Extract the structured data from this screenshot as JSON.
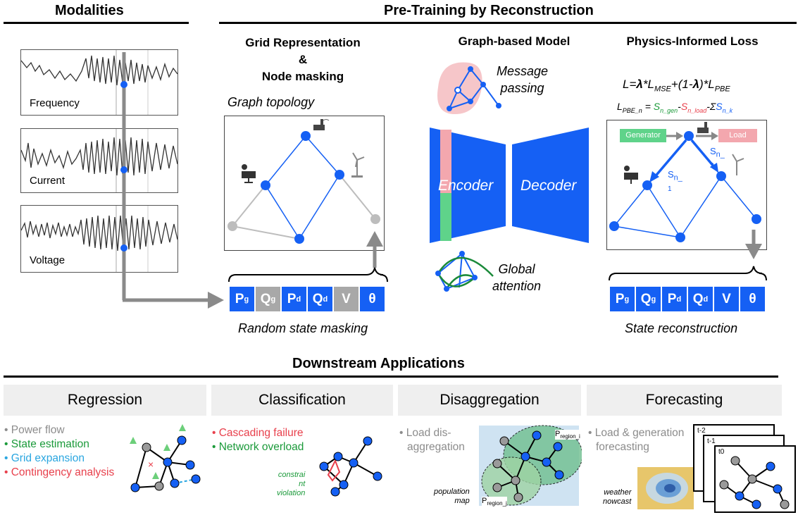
{
  "modalities": {
    "title": "Modalities",
    "signals": [
      "Frequency",
      "Current",
      "Voltage"
    ]
  },
  "pretraining": {
    "title": "Pre-Training by Reconstruction",
    "grid": {
      "title_line1": "Grid Representation",
      "title_line2": "&",
      "title_line3": "Node masking",
      "topology_label": "Graph topology",
      "masking_label": "Random state masking"
    },
    "model": {
      "title": "Graph-based Model",
      "message_passing": [
        "Message",
        "passing"
      ],
      "encoder": "Encoder",
      "decoder": "Decoder",
      "global_attention": [
        "Global",
        "attention"
      ]
    },
    "loss": {
      "title": "Physics-Informed Loss",
      "formula": "L=λ*L_MSE+(1-λ)*L_PBE",
      "pbe_formula": "L_PBE_n = S_n_gen - S_n_load - ΣS_n_k",
      "generator": "Generator",
      "load": "Load",
      "flow1": "S_n_1",
      "flow2": "S_n_2",
      "reconstruction_label": "State reconstruction"
    },
    "states": [
      "Pg",
      "Qg",
      "Pd",
      "Qd",
      "V",
      "θ"
    ],
    "masked_states": [
      "Qg",
      "V"
    ]
  },
  "downstream": {
    "title": "Downstream Applications",
    "apps": [
      {
        "title": "Regression",
        "items": [
          {
            "text": "Power flow",
            "color": "#8c8c8c"
          },
          {
            "text": "State estimation",
            "color": "#1b9a3a"
          },
          {
            "text": "Grid expansion",
            "color": "#2aa6e0"
          },
          {
            "text": "Contingency analysis",
            "color": "#e8404c"
          }
        ]
      },
      {
        "title": "Classification",
        "items": [
          {
            "text": "Cascading failure",
            "color": "#e8404c"
          },
          {
            "text": "Network overload",
            "color": "#1b9a3a"
          }
        ],
        "note": [
          "constrai",
          "nt",
          "violation"
        ]
      },
      {
        "title": "Disaggregation",
        "items": [
          {
            "text": "Load dis-",
            "color": "#8c8c8c"
          },
          {
            "text": "aggregation",
            "color": "#8c8c8c"
          }
        ],
        "map_label": [
          "population",
          "map"
        ],
        "region_i": "P_region_i",
        "region_j": "P_region_j"
      },
      {
        "title": "Forecasting",
        "items": [
          {
            "text": "Load & generation",
            "color": "#8c8c8c"
          },
          {
            "text": "forecasting",
            "color": "#8c8c8c"
          }
        ],
        "weather_label": [
          "weather",
          "nowcast"
        ],
        "time_labels": [
          "t-2",
          "t-1",
          "t0"
        ]
      }
    ]
  },
  "colors": {
    "node_blue": "#1560f4",
    "masked_grey": "#a8a8a8",
    "mask_pink": "#f3a7ae",
    "mask_green": "#5fd38a"
  }
}
